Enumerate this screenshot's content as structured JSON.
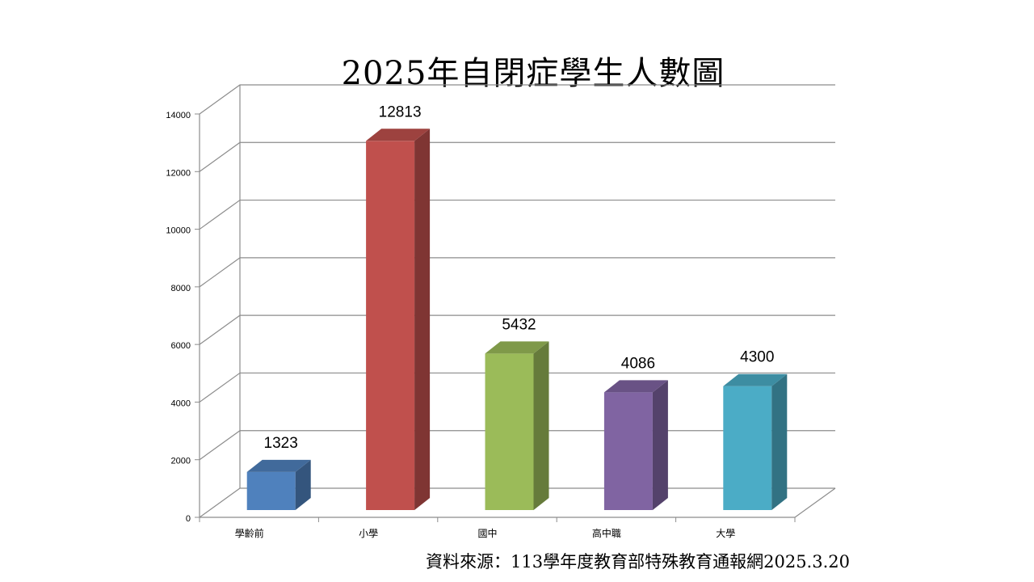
{
  "chart_data": {
    "type": "bar",
    "title": "2025年自閉症學生人數圖",
    "categories": [
      "學齡前",
      "小學",
      "國中",
      "高中職",
      "大學"
    ],
    "values": [
      1323,
      12813,
      5432,
      4086,
      4300
    ],
    "colors": [
      "#4f81bd",
      "#c0504d",
      "#9bbb59",
      "#8064a2",
      "#4bacc6"
    ],
    "ylim": [
      0,
      14000
    ],
    "yticks": [
      0,
      2000,
      4000,
      6000,
      8000,
      10000,
      12000,
      14000
    ],
    "xlabel": "",
    "ylabel": "",
    "grid": true,
    "legend": "none",
    "style": "3d-column"
  },
  "source_note": "資料來源：113學年度教育部特殊教育通報網2025.3.20"
}
